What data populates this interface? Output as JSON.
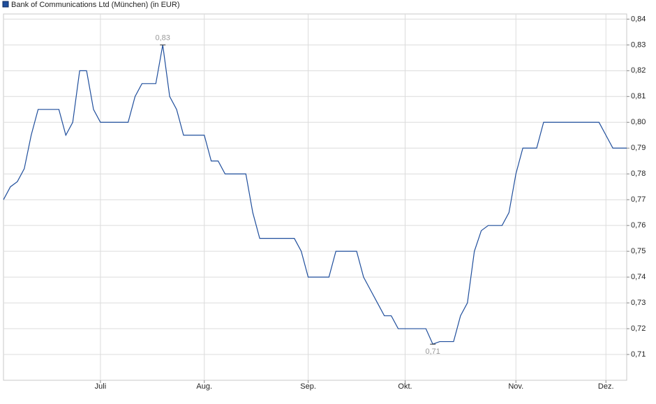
{
  "chart_data": {
    "type": "line",
    "title": "Bank of Communications Ltd (München) (in EUR)",
    "categories": [
      null,
      null,
      null,
      null,
      null,
      null,
      null,
      null,
      null,
      null,
      null,
      null,
      null,
      null,
      "Juli",
      null,
      null,
      null,
      null,
      null,
      null,
      null,
      null,
      null,
      null,
      null,
      null,
      null,
      null,
      "Aug.",
      null,
      null,
      null,
      null,
      null,
      null,
      null,
      null,
      null,
      null,
      null,
      null,
      null,
      null,
      "Sep.",
      null,
      null,
      null,
      null,
      null,
      null,
      null,
      null,
      null,
      null,
      null,
      null,
      null,
      "Okt.",
      null,
      null,
      null,
      null,
      null,
      null,
      null,
      null,
      null,
      null,
      null,
      null,
      null,
      null,
      null,
      "Nov.",
      null,
      null,
      null,
      null,
      null,
      null,
      null,
      null,
      null,
      null,
      null,
      null,
      "Dez.",
      null,
      null,
      null
    ],
    "series": [
      {
        "name": "Bank of Communications Ltd (München) (in EUR)",
        "color": "#1f4e9c",
        "values": [
          0.77,
          0.775,
          0.777,
          0.782,
          0.795,
          0.805,
          0.805,
          0.805,
          0.805,
          0.795,
          0.8,
          0.82,
          0.82,
          0.805,
          0.8,
          0.8,
          0.8,
          0.8,
          0.8,
          0.81,
          0.815,
          0.815,
          0.815,
          0.83,
          0.81,
          0.805,
          0.795,
          0.795,
          0.795,
          0.795,
          0.785,
          0.785,
          0.78,
          0.78,
          0.78,
          0.78,
          0.765,
          0.755,
          0.755,
          0.755,
          0.755,
          0.755,
          0.755,
          0.75,
          0.74,
          0.74,
          0.74,
          0.74,
          0.75,
          0.75,
          0.75,
          0.75,
          0.74,
          0.735,
          0.73,
          0.725,
          0.725,
          0.72,
          0.72,
          0.72,
          0.72,
          0.72,
          0.714,
          0.715,
          0.715,
          0.715,
          0.725,
          0.73,
          0.75,
          0.758,
          0.76,
          0.76,
          0.76,
          0.765,
          0.78,
          0.79,
          0.79,
          0.79,
          0.8,
          0.8,
          0.8,
          0.8,
          0.8,
          0.8,
          0.8,
          0.8,
          0.8,
          0.795,
          0.79,
          0.79,
          0.79
        ],
        "value_labels": [
          null,
          null,
          null,
          null,
          null,
          null,
          null,
          null,
          null,
          null,
          null,
          null,
          null,
          null,
          null,
          null,
          null,
          null,
          null,
          null,
          null,
          null,
          null,
          "0,83",
          null,
          null,
          null,
          null,
          null,
          null,
          null,
          null,
          null,
          null,
          null,
          null,
          null,
          null,
          null,
          null,
          null,
          null,
          null,
          null,
          null,
          null,
          null,
          null,
          null,
          null,
          null,
          null,
          null,
          null,
          null,
          null,
          null,
          null,
          null,
          null,
          null,
          null,
          "0,71",
          null,
          null,
          null,
          null,
          null,
          null,
          null,
          null,
          null,
          null,
          null,
          null,
          null,
          null,
          null,
          null,
          null,
          null,
          null,
          null,
          null,
          null,
          null,
          null,
          null,
          null,
          null,
          null
        ]
      }
    ],
    "ylim": [
      0.7,
      0.842
    ],
    "yticks": [
      {
        "value": 0.71,
        "label": "0,71"
      },
      {
        "value": 0.72,
        "label": "0,72"
      },
      {
        "value": 0.73,
        "label": "0,73"
      },
      {
        "value": 0.74,
        "label": "0,74"
      },
      {
        "value": 0.75,
        "label": "0,75"
      },
      {
        "value": 0.76,
        "label": "0,76"
      },
      {
        "value": 0.77,
        "label": "0,77"
      },
      {
        "value": 0.78,
        "label": "0,78"
      },
      {
        "value": 0.79,
        "label": "0,79"
      },
      {
        "value": 0.8,
        "label": "0,80"
      },
      {
        "value": 0.81,
        "label": "0,81"
      },
      {
        "value": 0.82,
        "label": "0,82"
      },
      {
        "value": 0.83,
        "label": "0,83"
      },
      {
        "value": 0.84,
        "label": "0,84"
      }
    ],
    "grid": true
  }
}
